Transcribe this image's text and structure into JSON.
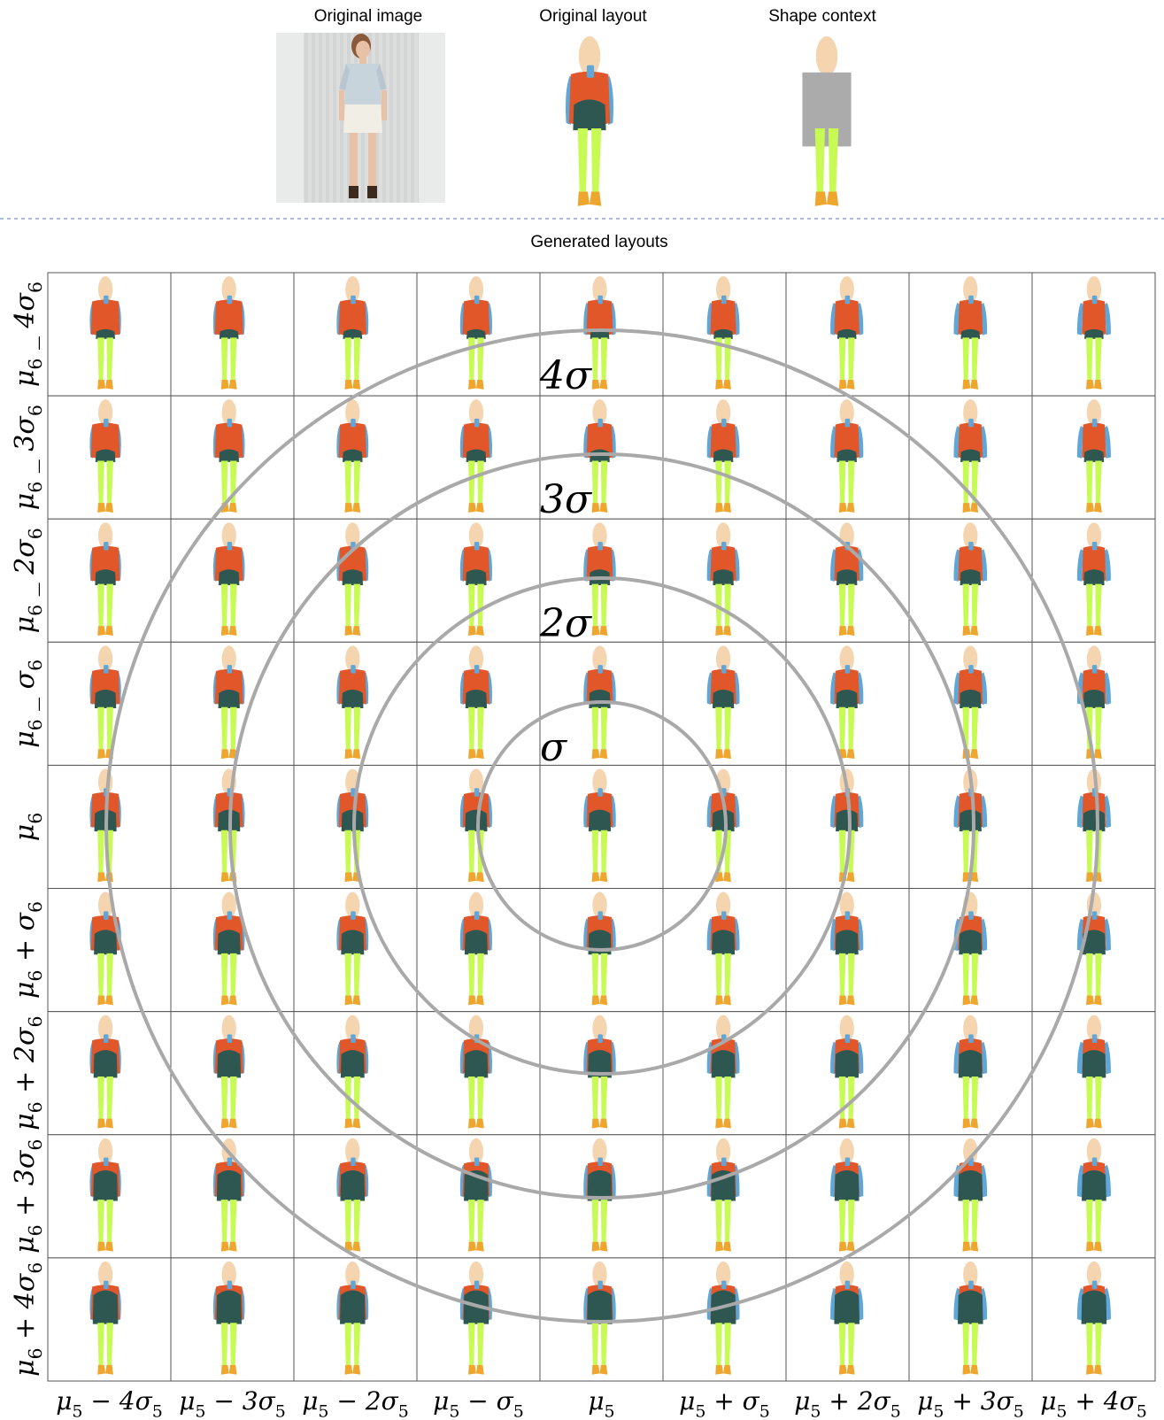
{
  "captions": {
    "original_image": "Original image",
    "original_layout": "Original layout",
    "shape_context": "Shape context",
    "generated_layouts": "Generated layouts"
  },
  "colors": {
    "hair_skin": "#F5D5B0",
    "top": "#E2572A",
    "bottom": "#2F5752",
    "arms": "#5FA7D8",
    "legs": "#C7FA52",
    "shoes": "#EFA62F",
    "shape_box": "#ABABAB",
    "ring": "#A9A9A9",
    "grid": "#555555",
    "separator": "#8DA7D6"
  },
  "rows": {
    "labels": [
      {
        "base": "μ",
        "sub": "6",
        "op": "_",
        "k": "4",
        "sigma": "σ",
        "ssub": "6"
      },
      {
        "base": "μ",
        "sub": "6",
        "op": "_",
        "k": "3",
        "sigma": "σ",
        "ssub": "6"
      },
      {
        "base": "μ",
        "sub": "6",
        "op": "_",
        "k": "2",
        "sigma": "σ",
        "ssub": "6"
      },
      {
        "base": "μ",
        "sub": "6",
        "op": "_",
        "k": "",
        "sigma": "σ",
        "ssub": "6"
      },
      {
        "base": "μ",
        "sub": "6",
        "op": "",
        "k": "",
        "sigma": "",
        "ssub": ""
      },
      {
        "base": "μ",
        "sub": "6",
        "op": "+",
        "k": "",
        "sigma": "σ",
        "ssub": "6"
      },
      {
        "base": "μ",
        "sub": "6",
        "op": "+",
        "k": "2",
        "sigma": "σ",
        "ssub": "6"
      },
      {
        "base": "μ",
        "sub": "6",
        "op": "+",
        "k": "3",
        "sigma": "σ",
        "ssub": "6"
      },
      {
        "base": "μ",
        "sub": "6",
        "op": "+",
        "k": "4",
        "sigma": "σ",
        "ssub": "6"
      }
    ]
  },
  "columns": {
    "labels": [
      {
        "base": "μ",
        "sub": "5",
        "op": "−",
        "k": "4",
        "sigma": "σ",
        "ssub": "5"
      },
      {
        "base": "μ",
        "sub": "5",
        "op": "−",
        "k": "3",
        "sigma": "σ",
        "ssub": "5"
      },
      {
        "base": "μ",
        "sub": "5",
        "op": "−",
        "k": "2",
        "sigma": "σ",
        "ssub": "5"
      },
      {
        "base": "μ",
        "sub": "5",
        "op": "−",
        "k": "",
        "sigma": "σ",
        "ssub": "5"
      },
      {
        "base": "μ",
        "sub": "5",
        "op": "",
        "k": "",
        "sigma": "",
        "ssub": ""
      },
      {
        "base": "μ",
        "sub": "5",
        "op": "+",
        "k": "",
        "sigma": "σ",
        "ssub": "5"
      },
      {
        "base": "μ",
        "sub": "5",
        "op": "+",
        "k": "2",
        "sigma": "σ",
        "ssub": "5"
      },
      {
        "base": "μ",
        "sub": "5",
        "op": "+",
        "k": "3",
        "sigma": "σ",
        "ssub": "5"
      },
      {
        "base": "μ",
        "sub": "5",
        "op": "+",
        "k": "4",
        "sigma": "σ",
        "ssub": "5"
      }
    ]
  },
  "rings": [
    {
      "label": "σ",
      "level": 1
    },
    {
      "label": "2σ",
      "level": 2
    },
    {
      "label": "3σ",
      "level": 3
    },
    {
      "label": "4σ",
      "level": 4
    }
  ]
}
